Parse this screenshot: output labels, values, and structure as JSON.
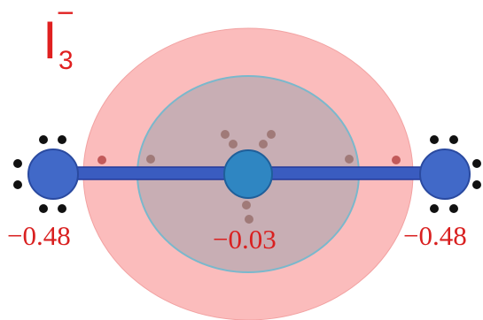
{
  "title": {
    "symbol": "I",
    "subscript": "3",
    "superscript": "−"
  },
  "charges": {
    "left": "−0.48",
    "center": "−0.03",
    "right": "−0.48"
  },
  "colors": {
    "outer_disk": "#fbbcbc",
    "inner_disk": "#c8aeb4",
    "inner_disk_stroke": "#7ab8cc",
    "bond": "#3a5cc0",
    "terminal_atom": "#4169c8",
    "central_atom": "#2f86c2",
    "lone_pair_dark": "#111111",
    "lone_pair_brown": "#a07a78",
    "lone_pair_red": "#c06060",
    "text": "#d92020"
  }
}
